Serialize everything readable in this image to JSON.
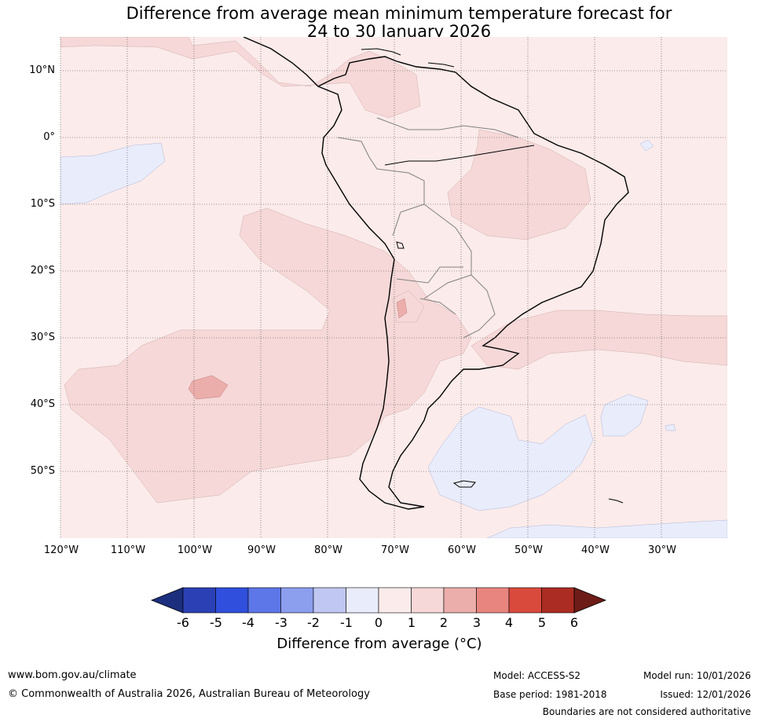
{
  "title": {
    "line1": "Difference from average mean minimum temperature forecast for",
    "line2": "24 to 30 January 2026"
  },
  "map": {
    "lat_labels": [
      "10°N",
      "0°",
      "10°S",
      "20°S",
      "30°S",
      "40°S",
      "50°S"
    ],
    "lon_labels": [
      "120°W",
      "110°W",
      "100°W",
      "90°W",
      "80°W",
      "70°W",
      "60°W",
      "50°W",
      "40°W",
      "30°W"
    ],
    "colors": {
      "bg_0_1": "#fbebea",
      "band_1_2": "#f5d8d7",
      "band_2_3": "#ecaeab",
      "band_neg1_0": "#e9ecfb",
      "band_neg2_neg1": "#c0c7f2",
      "land_outline": "#000000",
      "border": "#808080",
      "grid": "#444444"
    }
  },
  "colorbar": {
    "ticks": [
      "-6",
      "-5",
      "-4",
      "-3",
      "-2",
      "-1",
      "0",
      "1",
      "2",
      "3",
      "4",
      "5",
      "6"
    ],
    "colors": [
      "#1c2f7e",
      "#2a40b4",
      "#2f4fdc",
      "#5d76e8",
      "#8c9eee",
      "#c0c7f2",
      "#e9ecfb",
      "#fbebea",
      "#f5d8d7",
      "#ecaeab",
      "#e8857f",
      "#d94a3d",
      "#ab2c22",
      "#6d1c17"
    ],
    "label": "Difference from average (°C)"
  },
  "footer": {
    "website": "www.bom.gov.au/climate",
    "copyright": "© Commonwealth of Australia 2026, Australian Bureau of Meteorology",
    "model": "Model: ACCESS-S2",
    "base_period": "Base period: 1981-2018",
    "model_run": "Model run: 10/01/2026",
    "issued": "Issued: 12/01/2026",
    "disclaimer": "Boundaries are not considered authoritative"
  }
}
